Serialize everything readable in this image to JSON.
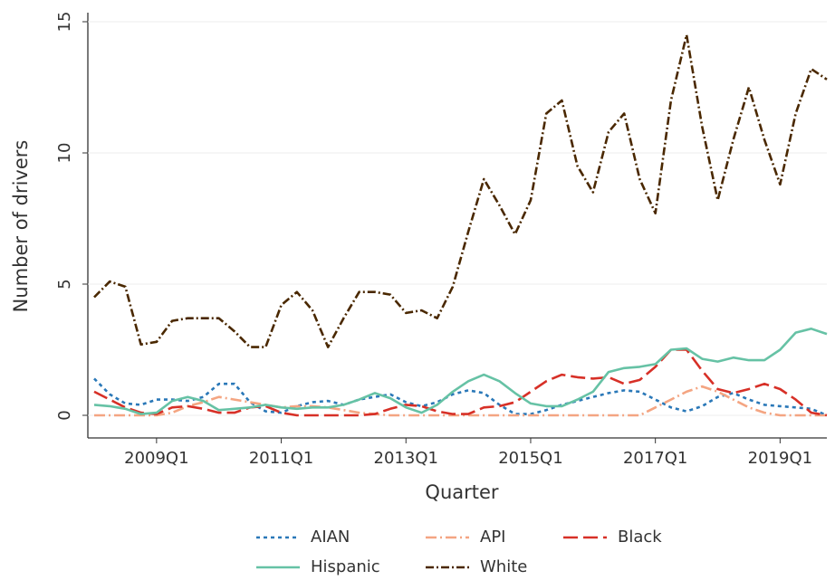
{
  "chart_data": {
    "type": "line",
    "x_label": "Quarter",
    "y_label": "Number of drivers",
    "categories": [
      null,
      null,
      null,
      null,
      "2009Q1",
      null,
      null,
      null,
      null,
      null,
      null,
      null,
      "2011Q1",
      null,
      null,
      null,
      null,
      null,
      null,
      null,
      "2013Q1",
      null,
      null,
      null,
      null,
      null,
      null,
      null,
      "2015Q1",
      null,
      null,
      null,
      null,
      null,
      null,
      null,
      "2017Q1",
      null,
      null,
      null,
      null,
      null,
      null,
      null,
      "2019Q1",
      null,
      null,
      null
    ],
    "ylim": [
      0,
      15
    ],
    "yticks": [
      0,
      5,
      10,
      15
    ],
    "grid": true,
    "legend": "bottom",
    "series": [
      {
        "name": "AIAN",
        "color": "#2a78b8",
        "dash": "4 4",
        "values": [
          1.4,
          0.8,
          0.45,
          0.4,
          0.6,
          0.6,
          0.55,
          0.7,
          1.2,
          1.2,
          0.5,
          0.15,
          0.1,
          0.35,
          0.5,
          0.55,
          0.4,
          0.6,
          0.7,
          0.8,
          0.5,
          0.35,
          0.5,
          0.8,
          0.95,
          0.85,
          0.4,
          0.05,
          0.05,
          0.2,
          0.4,
          0.55,
          0.7,
          0.85,
          0.95,
          0.9,
          0.6,
          0.3,
          0.15,
          0.35,
          0.7,
          0.85,
          0.6,
          0.4,
          0.35,
          0.3,
          0.25,
          0.0
        ]
      },
      {
        "name": "API",
        "color": "#f4a582",
        "dash": "12 4 2 4",
        "values": [
          0,
          0,
          0,
          0,
          0,
          0.1,
          0.35,
          0.5,
          0.7,
          0.6,
          0.5,
          0.4,
          0.3,
          0.35,
          0.35,
          0.3,
          0.2,
          0.1,
          0.05,
          0,
          0,
          0,
          0,
          0,
          0,
          0,
          0,
          0,
          0,
          0,
          0,
          0,
          0,
          0,
          0,
          0,
          0.3,
          0.6,
          0.9,
          1.1,
          0.9,
          0.6,
          0.3,
          0.1,
          0,
          0,
          0,
          0
        ]
      },
      {
        "name": "Black",
        "color": "#d73027",
        "dash": "16 6",
        "values": [
          0.9,
          0.6,
          0.3,
          0.1,
          0.05,
          0.3,
          0.35,
          0.25,
          0.1,
          0.1,
          0.3,
          0.35,
          0.1,
          0.0,
          0,
          0,
          0,
          0,
          0.05,
          0.25,
          0.4,
          0.35,
          0.15,
          0.05,
          0.05,
          0.3,
          0.35,
          0.5,
          0.9,
          1.3,
          1.55,
          1.45,
          1.4,
          1.45,
          1.2,
          1.35,
          1.85,
          2.5,
          2.5,
          1.7,
          1.0,
          0.85,
          1.0,
          1.2,
          1.0,
          0.6,
          0.1,
          0.0
        ]
      },
      {
        "name": "Hispanic",
        "color": "#66c2a5",
        "dash": "none",
        "values": [
          0.4,
          0.35,
          0.25,
          0.05,
          0.1,
          0.55,
          0.7,
          0.55,
          0.2,
          0.25,
          0.3,
          0.4,
          0.3,
          0.25,
          0.3,
          0.3,
          0.4,
          0.6,
          0.85,
          0.65,
          0.3,
          0.1,
          0.4,
          0.9,
          1.3,
          1.55,
          1.3,
          0.85,
          0.45,
          0.35,
          0.35,
          0.6,
          0.9,
          1.65,
          1.8,
          1.85,
          1.95,
          2.5,
          2.55,
          2.15,
          2.05,
          2.2,
          2.1,
          2.1,
          2.5,
          3.15,
          3.3,
          3.1
        ]
      },
      {
        "name": "White",
        "color": "#4a2800",
        "dash": "9 3 2 3",
        "values": [
          4.5,
          5.1,
          4.9,
          2.7,
          2.8,
          3.6,
          3.7,
          3.7,
          3.7,
          3.2,
          2.6,
          2.6,
          4.2,
          4.7,
          4.0,
          2.6,
          3.7,
          4.7,
          4.7,
          4.6,
          3.9,
          4.0,
          3.7,
          4.9,
          7.0,
          9.0,
          8.0,
          6.9,
          8.2,
          11.5,
          12.0,
          9.5,
          8.5,
          10.8,
          11.5,
          9.0,
          7.7,
          12.0,
          14.5,
          11.0,
          8.2,
          10.5,
          12.5,
          10.5,
          8.8,
          11.5,
          13.2,
          12.8
        ]
      }
    ]
  }
}
